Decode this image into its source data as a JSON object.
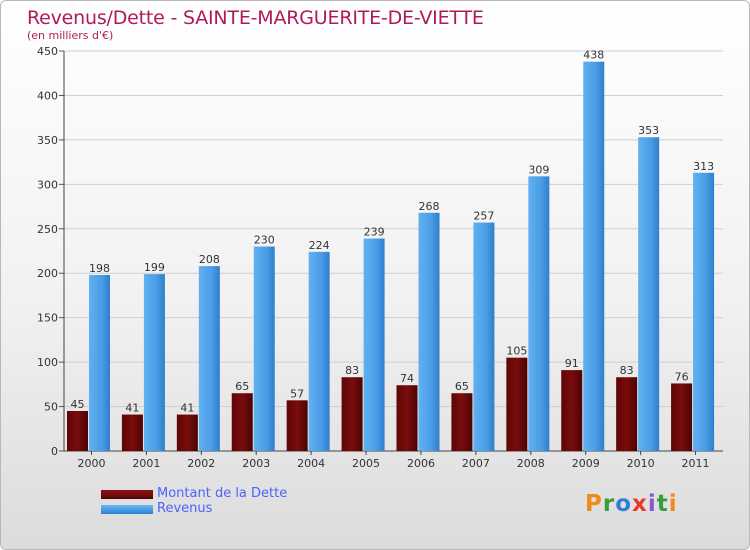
{
  "header": {
    "title": "Revenus/Dette - SAINTE-MARGUERITE-DE-VIETTE",
    "subtitle": "(en milliers d'€)"
  },
  "legend": {
    "debt_label": "Montant de la Dette",
    "revenue_label": "Revenus"
  },
  "brand": {
    "logo_text": "Proxiti",
    "logo_colors": [
      "#f08a1c",
      "#3a9b3a",
      "#2f7fd6",
      "#e83a2a",
      "#8a5ac8",
      "#3a9b3a",
      "#f08a1c"
    ]
  },
  "colors": {
    "debt": "#7a0c0c",
    "revenue": "#4a9de6",
    "title": "#b01a5a",
    "legend_text": "#4a62ff"
  },
  "chart_data": {
    "type": "bar",
    "title": "Revenus/Dette - SAINTE-MARGUERITE-DE-VIETTE",
    "subtitle": "(en milliers d'€)",
    "categories": [
      "2000",
      "2001",
      "2002",
      "2003",
      "2004",
      "2005",
      "2006",
      "2007",
      "2008",
      "2009",
      "2010",
      "2011"
    ],
    "series": [
      {
        "name": "Montant de la Dette",
        "values": [
          45,
          41,
          41,
          65,
          57,
          83,
          74,
          65,
          105,
          91,
          83,
          76
        ]
      },
      {
        "name": "Revenus",
        "values": [
          198,
          199,
          208,
          230,
          224,
          239,
          268,
          257,
          309,
          438,
          353,
          313
        ]
      }
    ],
    "yticks": [
      0,
      50,
      100,
      150,
      200,
      250,
      300,
      350,
      400,
      450
    ],
    "ylim": [
      0,
      450
    ],
    "grid": true,
    "legend_position": "bottom-left",
    "data_labels": true
  }
}
